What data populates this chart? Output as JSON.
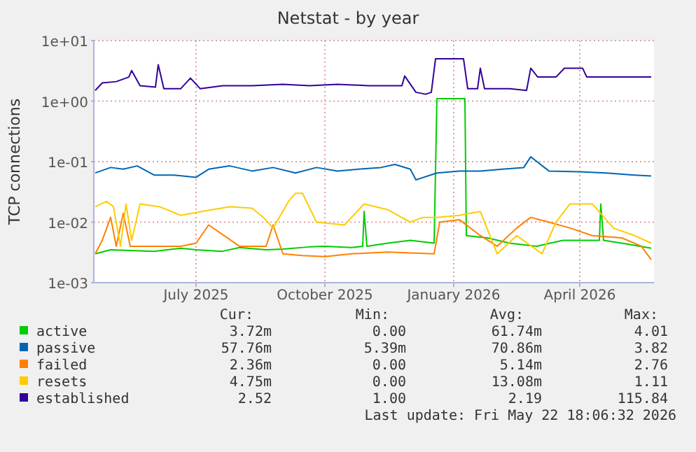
{
  "chart_data": {
    "type": "line",
    "title": "Netstat - by year",
    "ylabel": "TCP connections",
    "log": "y",
    "grid": true,
    "legend": "bottom",
    "marker": "none",
    "line_style": "solid",
    "xlim": [
      "2025-04-19",
      "2026-05-24"
    ],
    "xticks": [
      {
        "value": "2025-07-01",
        "label": "July 2025"
      },
      {
        "value": "2025-10-01",
        "label": "October 2025"
      },
      {
        "value": "2026-01-01",
        "label": "January 2026"
      },
      {
        "value": "2026-04-01",
        "label": "April 2026"
      }
    ],
    "ylim": [
      0.001,
      10
    ],
    "yticks": [
      {
        "value": 0.001,
        "label": "1e-03"
      },
      {
        "value": 0.01,
        "label": "1e-02"
      },
      {
        "value": 0.1,
        "label": "1e-01"
      },
      {
        "value": 1,
        "label": "1e+00"
      },
      {
        "value": 10,
        "label": "1e+01"
      }
    ],
    "series": [
      {
        "name": "active",
        "color": "#00cc00",
        "x": [
          "2025-04-20",
          "2025-05-01",
          "2025-05-15",
          "2025-06-01",
          "2025-06-20",
          "2025-07-01",
          "2025-07-20",
          "2025-08-01",
          "2025-08-20",
          "2025-09-01",
          "2025-09-20",
          "2025-10-01",
          "2025-10-20",
          "2025-10-28",
          "2025-10-29",
          "2025-10-31",
          "2025-11-15",
          "2025-12-01",
          "2025-12-18",
          "2025-12-20",
          "2026-01-09",
          "2026-01-10",
          "2026-01-25",
          "2026-02-10",
          "2026-03-01",
          "2026-03-20",
          "2026-04-15",
          "2026-04-16",
          "2026-04-18",
          "2026-05-01",
          "2026-05-22"
        ],
        "values": [
          0.003,
          0.0035,
          0.0034,
          0.0033,
          0.0037,
          0.0035,
          0.0033,
          0.0038,
          0.0035,
          0.0036,
          0.0039,
          0.004,
          0.0038,
          0.004,
          0.015,
          0.004,
          0.0045,
          0.005,
          0.0045,
          1.1,
          1.1,
          0.006,
          0.0055,
          0.0045,
          0.004,
          0.005,
          0.005,
          0.02,
          0.005,
          0.0045,
          0.0037
        ]
      },
      {
        "name": "passive",
        "color": "#0066b3",
        "x": [
          "2025-04-20",
          "2025-05-01",
          "2025-05-10",
          "2025-05-20",
          "2025-06-01",
          "2025-06-15",
          "2025-07-01",
          "2025-07-10",
          "2025-07-25",
          "2025-08-10",
          "2025-08-25",
          "2025-09-10",
          "2025-09-25",
          "2025-10-10",
          "2025-10-25",
          "2025-11-10",
          "2025-11-20",
          "2025-12-01",
          "2025-12-05",
          "2025-12-20",
          "2026-01-05",
          "2026-01-20",
          "2026-02-05",
          "2026-02-20",
          "2026-02-25",
          "2026-03-10",
          "2026-04-01",
          "2026-04-20",
          "2026-05-10",
          "2026-05-22"
        ],
        "values": [
          0.065,
          0.08,
          0.075,
          0.085,
          0.06,
          0.06,
          0.055,
          0.075,
          0.085,
          0.07,
          0.08,
          0.065,
          0.08,
          0.07,
          0.075,
          0.08,
          0.09,
          0.075,
          0.05,
          0.065,
          0.07,
          0.07,
          0.075,
          0.08,
          0.12,
          0.07,
          0.068,
          0.065,
          0.06,
          0.058
        ]
      },
      {
        "name": "failed",
        "color": "#ff8000",
        "x": [
          "2025-04-20",
          "2025-04-25",
          "2025-05-01",
          "2025-05-05",
          "2025-05-10",
          "2025-05-15",
          "2025-06-01",
          "2025-06-20",
          "2025-07-01",
          "2025-07-10",
          "2025-08-01",
          "2025-08-20",
          "2025-08-25",
          "2025-09-01",
          "2025-09-15",
          "2025-10-01",
          "2025-10-20",
          "2025-11-15",
          "2025-12-18",
          "2025-12-22",
          "2026-01-05",
          "2026-01-20",
          "2026-02-01",
          "2026-02-15",
          "2026-02-25",
          "2026-03-10",
          "2026-03-25",
          "2026-04-10",
          "2026-05-01",
          "2026-05-15",
          "2026-05-22"
        ],
        "values": [
          0.003,
          0.005,
          0.012,
          0.004,
          0.014,
          0.004,
          0.004,
          0.004,
          0.0045,
          0.009,
          0.004,
          0.004,
          0.009,
          0.003,
          0.0028,
          0.0027,
          0.003,
          0.0032,
          0.003,
          0.01,
          0.011,
          0.006,
          0.004,
          0.008,
          0.012,
          0.01,
          0.008,
          0.006,
          0.0055,
          0.004,
          0.0024
        ]
      },
      {
        "name": "resets",
        "color": "#ffcc00",
        "x": [
          "2025-04-20",
          "2025-04-28",
          "2025-05-03",
          "2025-05-08",
          "2025-05-12",
          "2025-05-16",
          "2025-05-22",
          "2025-06-05",
          "2025-06-20",
          "2025-07-05",
          "2025-07-25",
          "2025-08-10",
          "2025-08-18",
          "2025-08-25",
          "2025-09-05",
          "2025-09-10",
          "2025-09-15",
          "2025-09-25",
          "2025-10-15",
          "2025-10-29",
          "2025-11-15",
          "2025-12-01",
          "2025-12-10",
          "2025-12-20",
          "2026-01-05",
          "2026-01-20",
          "2026-02-01",
          "2026-02-15",
          "2026-03-05",
          "2026-03-15",
          "2026-03-25",
          "2026-04-10",
          "2026-04-25",
          "2026-05-10",
          "2026-05-22"
        ],
        "values": [
          0.018,
          0.022,
          0.018,
          0.004,
          0.02,
          0.005,
          0.02,
          0.018,
          0.013,
          0.015,
          0.018,
          0.017,
          0.012,
          0.008,
          0.022,
          0.03,
          0.03,
          0.01,
          0.009,
          0.02,
          0.016,
          0.01,
          0.012,
          0.012,
          0.013,
          0.015,
          0.003,
          0.006,
          0.003,
          0.01,
          0.02,
          0.02,
          0.008,
          0.006,
          0.0045
        ]
      },
      {
        "name": "established",
        "color": "#330099",
        "x": [
          "2025-04-20",
          "2025-04-25",
          "2025-05-05",
          "2025-05-14",
          "2025-05-16",
          "2025-05-22",
          "2025-06-02",
          "2025-06-04",
          "2025-06-08",
          "2025-06-20",
          "2025-06-27",
          "2025-07-04",
          "2025-07-20",
          "2025-08-10",
          "2025-09-01",
          "2025-09-20",
          "2025-10-10",
          "2025-11-01",
          "2025-11-25",
          "2025-11-27",
          "2025-12-05",
          "2025-12-12",
          "2025-12-16",
          "2025-12-19",
          "2026-01-08",
          "2026-01-11",
          "2026-01-18",
          "2026-01-20",
          "2026-01-23",
          "2026-02-10",
          "2026-02-22",
          "2026-02-25",
          "2026-03-02",
          "2026-03-15",
          "2026-03-21",
          "2026-04-03",
          "2026-04-06",
          "2026-05-22"
        ],
        "values": [
          1.5,
          2.0,
          2.1,
          2.5,
          3.2,
          1.8,
          1.7,
          4.0,
          1.6,
          1.6,
          2.4,
          1.6,
          1.8,
          1.8,
          1.9,
          1.8,
          1.9,
          1.8,
          1.8,
          2.6,
          1.4,
          1.3,
          1.4,
          5.0,
          5.0,
          1.6,
          1.6,
          3.5,
          1.6,
          1.6,
          1.5,
          3.5,
          2.5,
          2.5,
          3.5,
          3.5,
          2.5,
          2.5
        ]
      }
    ],
    "annotations": [
      "Cur:",
      "Min:",
      "Avg:",
      "Max:",
      "3.72m",
      "0.00",
      "61.74m",
      "4.01",
      "57.76m",
      "5.39m",
      "70.86m",
      "3.82",
      "2.36m",
      "0.00",
      "5.14m",
      "2.76",
      "4.75m",
      "0.00",
      "13.08m",
      "1.11",
      "2.52",
      "1.00",
      "2.19",
      "115.84",
      "Last update: Fri May 22 18:06:32 2026"
    ]
  }
}
